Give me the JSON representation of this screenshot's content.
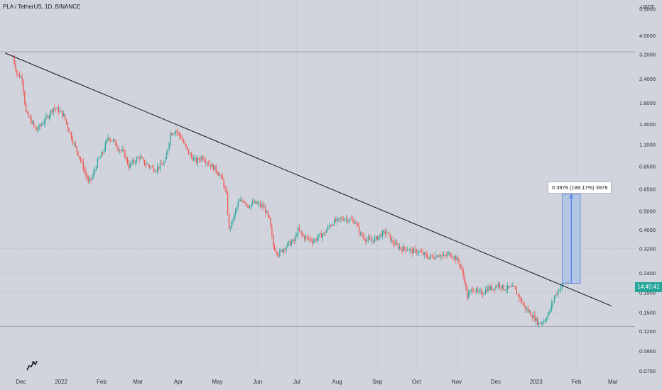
{
  "header": {
    "title": "PLA / TetherUS, 1D, BINANCE",
    "unit": "USDT"
  },
  "price_tag": "14:45:41",
  "measure": {
    "label": "0.3978 (188.17%) 3978"
  },
  "colors": {
    "up": "#26a69a",
    "down": "#ef5350",
    "trendline": "#131722",
    "measure_fill": "#a8c0ea",
    "measure_line": "#3d6fe0",
    "background": "#d1d4dc"
  },
  "logo_icon": "tradingview-logo-icon",
  "chart_data": {
    "type": "line",
    "title": "PLA / TetherUS, 1D, BINANCE",
    "ylabel": "USDT",
    "log_scale": true,
    "grid": true,
    "ylim": [
      0.072,
      6.1
    ],
    "xlim": [
      "2021-11-15",
      "2023-03-18"
    ],
    "y_ticks": [
      "5.5000",
      "4.0000",
      "3.2000",
      "2.4000",
      "1.8000",
      "1.4000",
      "1.1000",
      "0.8500",
      "0.6500",
      "0.5000",
      "0.4000",
      "0.3200",
      "0.2400",
      "0.1900",
      "0.1500",
      "0.1200",
      "0.0950",
      "0.0750"
    ],
    "x_ticks": [
      {
        "label": "Dec",
        "date": "2021-12-01"
      },
      {
        "label": "2022",
        "date": "2022-01-01"
      },
      {
        "label": "Feb",
        "date": "2022-02-01"
      },
      {
        "label": "Mar",
        "date": "2022-03-01"
      },
      {
        "label": "Apr",
        "date": "2022-04-01"
      },
      {
        "label": "May",
        "date": "2022-05-01"
      },
      {
        "label": "Jun",
        "date": "2022-06-01"
      },
      {
        "label": "Jul",
        "date": "2022-07-01"
      },
      {
        "label": "Aug",
        "date": "2022-08-01"
      },
      {
        "label": "Sep",
        "date": "2022-09-01"
      },
      {
        "label": "Oct",
        "date": "2022-10-01"
      },
      {
        "label": "Nov",
        "date": "2022-11-01"
      },
      {
        "label": "Dec",
        "date": "2022-12-01"
      },
      {
        "label": "2023",
        "date": "2023-01-01"
      },
      {
        "label": "Feb",
        "date": "2023-02-01"
      },
      {
        "label": "Mar",
        "date": "2023-03-01"
      }
    ],
    "series": [
      {
        "values": [
          [
            "2021-11-25",
            3.1
          ],
          [
            "2021-11-28",
            2.55
          ],
          [
            "2021-12-02",
            2.4
          ],
          [
            "2021-12-05",
            1.6
          ],
          [
            "2021-12-09",
            1.45
          ],
          [
            "2021-12-13",
            1.3
          ],
          [
            "2021-12-17",
            1.4
          ],
          [
            "2021-12-22",
            1.55
          ],
          [
            "2021-12-26",
            1.7
          ],
          [
            "2021-12-30",
            1.65
          ],
          [
            "2022-01-03",
            1.55
          ],
          [
            "2022-01-07",
            1.3
          ],
          [
            "2022-01-11",
            1.1
          ],
          [
            "2022-01-15",
            0.95
          ],
          [
            "2022-01-19",
            0.8
          ],
          [
            "2022-01-22",
            0.7
          ],
          [
            "2022-01-25",
            0.75
          ],
          [
            "2022-01-29",
            0.9
          ],
          [
            "2022-02-02",
            1.0
          ],
          [
            "2022-02-06",
            1.2
          ],
          [
            "2022-02-10",
            1.15
          ],
          [
            "2022-02-14",
            1.05
          ],
          [
            "2022-02-18",
            1.0
          ],
          [
            "2022-02-22",
            0.85
          ],
          [
            "2022-02-26",
            0.9
          ],
          [
            "2022-03-02",
            0.95
          ],
          [
            "2022-03-06",
            0.88
          ],
          [
            "2022-03-10",
            0.85
          ],
          [
            "2022-03-14",
            0.82
          ],
          [
            "2022-03-18",
            0.85
          ],
          [
            "2022-03-22",
            0.9
          ],
          [
            "2022-03-26",
            1.25
          ],
          [
            "2022-03-30",
            1.3
          ],
          [
            "2022-04-03",
            1.2
          ],
          [
            "2022-04-07",
            1.05
          ],
          [
            "2022-04-11",
            0.95
          ],
          [
            "2022-04-15",
            0.9
          ],
          [
            "2022-04-19",
            0.95
          ],
          [
            "2022-04-23",
            0.9
          ],
          [
            "2022-04-27",
            0.85
          ],
          [
            "2022-05-01",
            0.8
          ],
          [
            "2022-05-05",
            0.72
          ],
          [
            "2022-05-08",
            0.6
          ],
          [
            "2022-05-10",
            0.4
          ],
          [
            "2022-05-13",
            0.45
          ],
          [
            "2022-05-17",
            0.55
          ],
          [
            "2022-05-21",
            0.57
          ],
          [
            "2022-05-25",
            0.53
          ],
          [
            "2022-05-29",
            0.55
          ],
          [
            "2022-06-02",
            0.54
          ],
          [
            "2022-06-06",
            0.52
          ],
          [
            "2022-06-10",
            0.45
          ],
          [
            "2022-06-13",
            0.33
          ],
          [
            "2022-06-17",
            0.3
          ],
          [
            "2022-06-21",
            0.32
          ],
          [
            "2022-06-25",
            0.34
          ],
          [
            "2022-06-29",
            0.35
          ],
          [
            "2022-07-02",
            0.4
          ],
          [
            "2022-07-06",
            0.37
          ],
          [
            "2022-07-10",
            0.36
          ],
          [
            "2022-07-14",
            0.35
          ],
          [
            "2022-07-18",
            0.37
          ],
          [
            "2022-07-22",
            0.38
          ],
          [
            "2022-07-26",
            0.42
          ],
          [
            "2022-07-30",
            0.44
          ],
          [
            "2022-08-03",
            0.45
          ],
          [
            "2022-08-07",
            0.46
          ],
          [
            "2022-08-11",
            0.45
          ],
          [
            "2022-08-15",
            0.44
          ],
          [
            "2022-08-19",
            0.38
          ],
          [
            "2022-08-23",
            0.36
          ],
          [
            "2022-08-27",
            0.35
          ],
          [
            "2022-08-31",
            0.36
          ],
          [
            "2022-09-04",
            0.38
          ],
          [
            "2022-09-08",
            0.39
          ],
          [
            "2022-09-12",
            0.35
          ],
          [
            "2022-09-16",
            0.33
          ],
          [
            "2022-09-20",
            0.32
          ],
          [
            "2022-09-24",
            0.32
          ],
          [
            "2022-09-28",
            0.31
          ],
          [
            "2022-10-02",
            0.31
          ],
          [
            "2022-10-06",
            0.3
          ],
          [
            "2022-10-10",
            0.29
          ],
          [
            "2022-10-14",
            0.29
          ],
          [
            "2022-10-18",
            0.3
          ],
          [
            "2022-10-22",
            0.29
          ],
          [
            "2022-10-26",
            0.3
          ],
          [
            "2022-10-30",
            0.29
          ],
          [
            "2022-11-03",
            0.27
          ],
          [
            "2022-11-07",
            0.22
          ],
          [
            "2022-11-09",
            0.18
          ],
          [
            "2022-11-13",
            0.2
          ],
          [
            "2022-11-17",
            0.19
          ],
          [
            "2022-11-21",
            0.19
          ],
          [
            "2022-11-25",
            0.2
          ],
          [
            "2022-11-29",
            0.2
          ],
          [
            "2022-12-03",
            0.21
          ],
          [
            "2022-12-07",
            0.2
          ],
          [
            "2022-12-11",
            0.2
          ],
          [
            "2022-12-15",
            0.2
          ],
          [
            "2022-12-19",
            0.18
          ],
          [
            "2022-12-23",
            0.16
          ],
          [
            "2022-12-27",
            0.15
          ],
          [
            "2022-12-31",
            0.14
          ],
          [
            "2023-01-03",
            0.131
          ],
          [
            "2023-01-07",
            0.136
          ],
          [
            "2023-01-11",
            0.15
          ],
          [
            "2023-01-15",
            0.18
          ],
          [
            "2023-01-19",
            0.2
          ],
          [
            "2023-01-23",
            0.215
          ],
          [
            "2023-01-26",
            0.215
          ]
        ]
      }
    ],
    "trendline": {
      "start": [
        "2021-11-19",
        3.25
      ],
      "end": [
        "2023-02-28",
        0.162
      ]
    },
    "horizontal_lines": [
      3.3,
      0.127
    ],
    "measure": {
      "x_start": "2023-01-21",
      "x_end": "2023-02-04",
      "y_start": 0.212,
      "y_end": 0.6098,
      "change": "0.3978",
      "percent": "188.17%"
    },
    "last_price_label": "14:45:41"
  }
}
